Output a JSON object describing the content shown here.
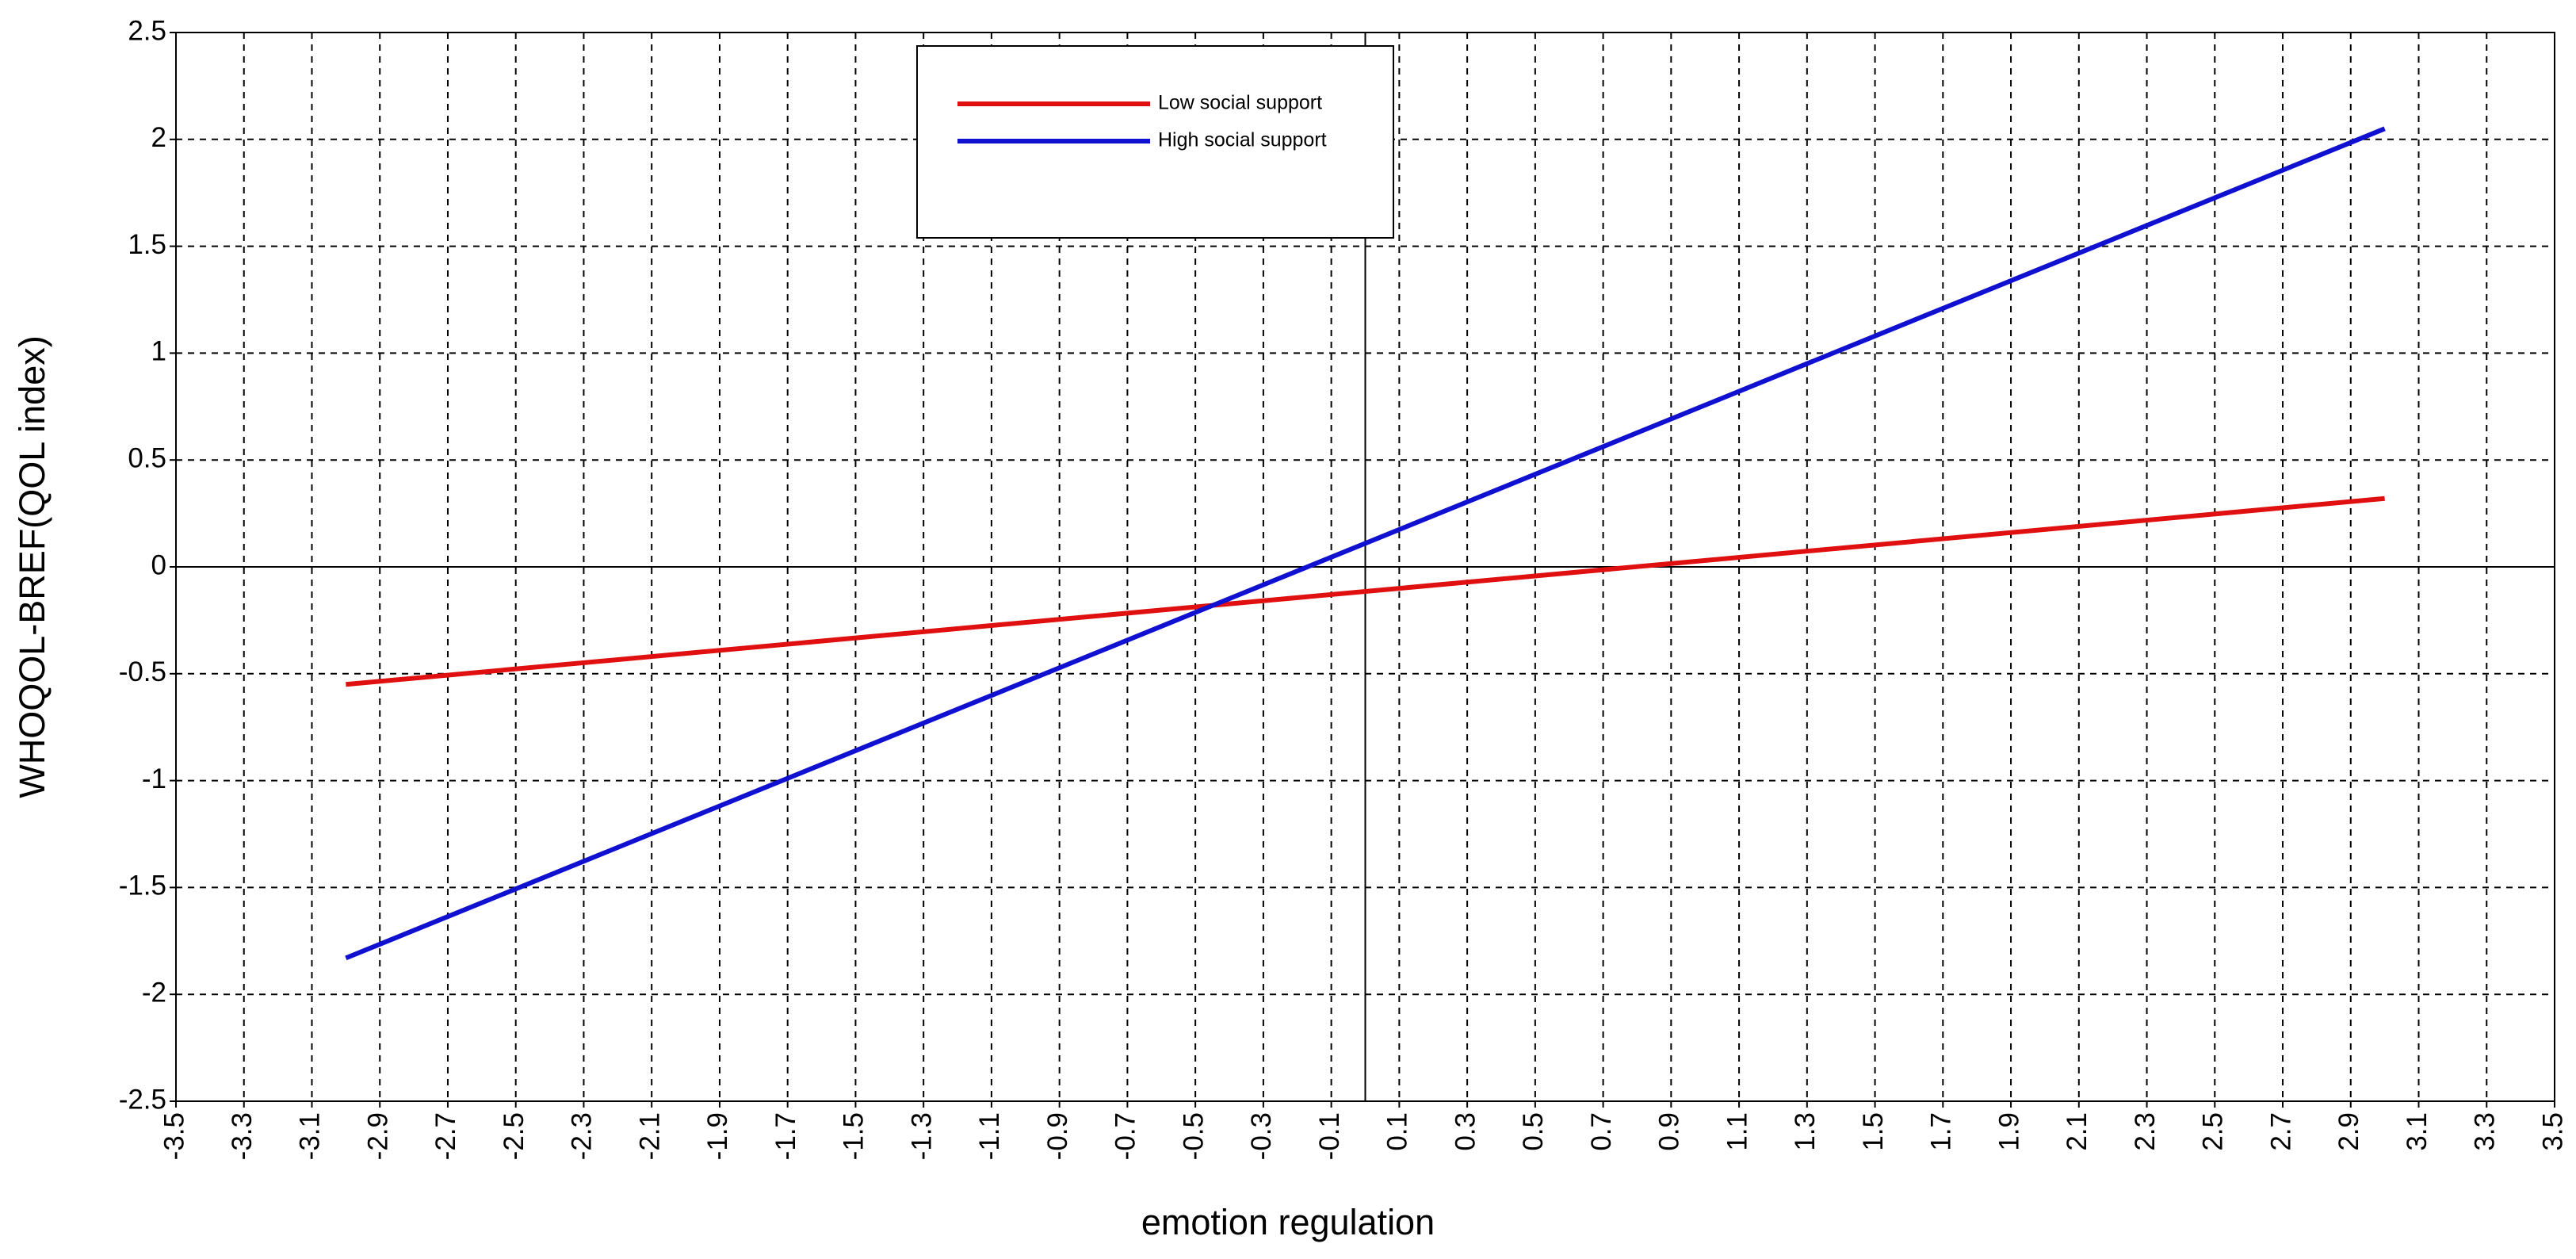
{
  "chart_data": {
    "type": "line",
    "xlabel": "emotion regulation",
    "ylabel": "WHOQOL-BREF(QOL index)",
    "x": [
      -3,
      3
    ],
    "series": [
      {
        "name": "Low social support",
        "color": "#e01010",
        "values": [
          -0.55,
          0.32
        ]
      },
      {
        "name": "High social support",
        "color": "#1010d0",
        "values": [
          -1.83,
          2.05
        ]
      }
    ],
    "xlim": [
      -3.5,
      3.5
    ],
    "xticks": [
      -3.5,
      -3.3,
      -3.1,
      -2.9,
      -2.7,
      -2.5,
      -2.3,
      -2.1,
      -1.9,
      -1.7,
      -1.5,
      -1.3,
      -1.1,
      -0.9,
      -0.7,
      -0.5,
      -0.3,
      -0.1,
      0.1,
      0.3,
      0.5,
      0.7,
      0.9,
      1.1,
      1.3,
      1.5,
      1.7,
      1.9,
      2.1,
      2.3,
      2.5,
      2.7,
      2.9,
      3.1,
      3.3,
      3.5
    ],
    "ylim": [
      -2.5,
      2.5
    ],
    "yticks": [
      -2.5,
      -2,
      -1.5,
      -1,
      -0.5,
      0,
      0.5,
      1,
      1.5,
      2,
      2.5
    ],
    "grid": true,
    "legend": "upper center"
  }
}
